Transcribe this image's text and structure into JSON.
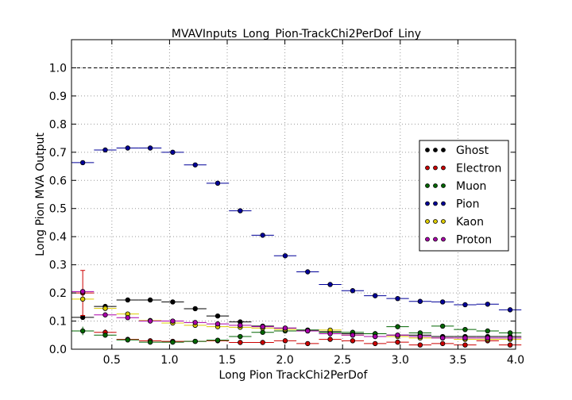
{
  "chart_data": {
    "type": "scatter",
    "title": "MVAVInputs_Long_Pion-TrackChi2PerDof_Liny",
    "xlabel": "Long Pion TrackChi2PerDof",
    "ylabel": "Long Pion MVA Output",
    "xlim": [
      0.15,
      4.0
    ],
    "ylim": [
      0.0,
      1.1
    ],
    "x_ticks": [
      "0.5",
      "1.0",
      "1.5",
      "2.0",
      "2.5",
      "3.0",
      "3.5",
      "4.0"
    ],
    "x_tick_values": [
      0.5,
      1.0,
      1.5,
      2.0,
      2.5,
      3.0,
      3.5,
      4.0
    ],
    "y_ticks": [
      "0.0",
      "0.1",
      "0.2",
      "0.3",
      "0.4",
      "0.5",
      "0.6",
      "0.7",
      "0.8",
      "0.9",
      "1.0"
    ],
    "y_tick_values": [
      0.0,
      0.1,
      0.2,
      0.3,
      0.4,
      0.5,
      0.6,
      0.7,
      0.8,
      0.9,
      1.0
    ],
    "grid": true,
    "reference_line": 1.0,
    "legend_position": "center-right",
    "bin_halfwidth": 0.0975,
    "x": [
      0.2475,
      0.4425,
      0.6375,
      0.8325,
      1.0275,
      1.2225,
      1.4175,
      1.6125,
      1.8075,
      2.0025,
      2.1975,
      2.3925,
      2.5875,
      2.7825,
      2.9775,
      3.1725,
      3.3675,
      3.5625,
      3.7575,
      3.9525
    ],
    "series": [
      {
        "name": "Ghost",
        "color": "#000000",
        "values": [
          0.113,
          0.152,
          0.175,
          0.175,
          0.168,
          0.144,
          0.118,
          0.097,
          0.082,
          0.075,
          0.068,
          0.062,
          0.055,
          0.055,
          0.05,
          0.05,
          0.045,
          0.045,
          0.045,
          0.045
        ]
      },
      {
        "name": "Electron",
        "color": "#cc0000",
        "values": [
          0.2,
          0.06,
          0.035,
          0.03,
          0.028,
          0.028,
          0.03,
          0.024,
          0.024,
          0.03,
          0.02,
          0.035,
          0.03,
          0.02,
          0.025,
          0.015,
          0.02,
          0.015,
          0.03,
          0.015
        ],
        "errors": [
          0.08,
          0.01,
          0.005,
          0.005,
          0.005,
          0.005,
          0.005,
          0.005,
          0.005,
          0.005,
          0.005,
          0.005,
          0.005,
          0.005,
          0.005,
          0.005,
          0.005,
          0.005,
          0.005,
          0.005
        ]
      },
      {
        "name": "Muon",
        "color": "#006600",
        "values": [
          0.065,
          0.05,
          0.033,
          0.025,
          0.025,
          0.028,
          0.032,
          0.045,
          0.06,
          0.065,
          0.068,
          0.06,
          0.06,
          0.055,
          0.08,
          0.058,
          0.082,
          0.07,
          0.065,
          0.058
        ],
        "errors": [
          0.015,
          0.008,
          0.005,
          0.005,
          0.005,
          0.005,
          0.005,
          0.005,
          0.005,
          0.005,
          0.005,
          0.005,
          0.005,
          0.005,
          0.006,
          0.005,
          0.006,
          0.005,
          0.005,
          0.005
        ]
      },
      {
        "name": "Pion",
        "color": "#000099",
        "values": [
          0.663,
          0.708,
          0.715,
          0.715,
          0.7,
          0.655,
          0.59,
          0.492,
          0.405,
          0.332,
          0.275,
          0.23,
          0.208,
          0.19,
          0.18,
          0.17,
          0.168,
          0.158,
          0.16,
          0.14
        ]
      },
      {
        "name": "Kaon",
        "color": "#ddcc00",
        "values": [
          0.178,
          0.145,
          0.125,
          0.102,
          0.093,
          0.085,
          0.08,
          0.078,
          0.075,
          0.07,
          0.065,
          0.068,
          0.05,
          0.045,
          0.045,
          0.04,
          0.04,
          0.035,
          0.035,
          0.035
        ]
      },
      {
        "name": "Proton",
        "color": "#aa00aa",
        "values": [
          0.205,
          0.122,
          0.112,
          0.1,
          0.1,
          0.095,
          0.09,
          0.085,
          0.08,
          0.075,
          0.065,
          0.055,
          0.05,
          0.045,
          0.05,
          0.045,
          0.04,
          0.04,
          0.04,
          0.04
        ]
      }
    ]
  }
}
